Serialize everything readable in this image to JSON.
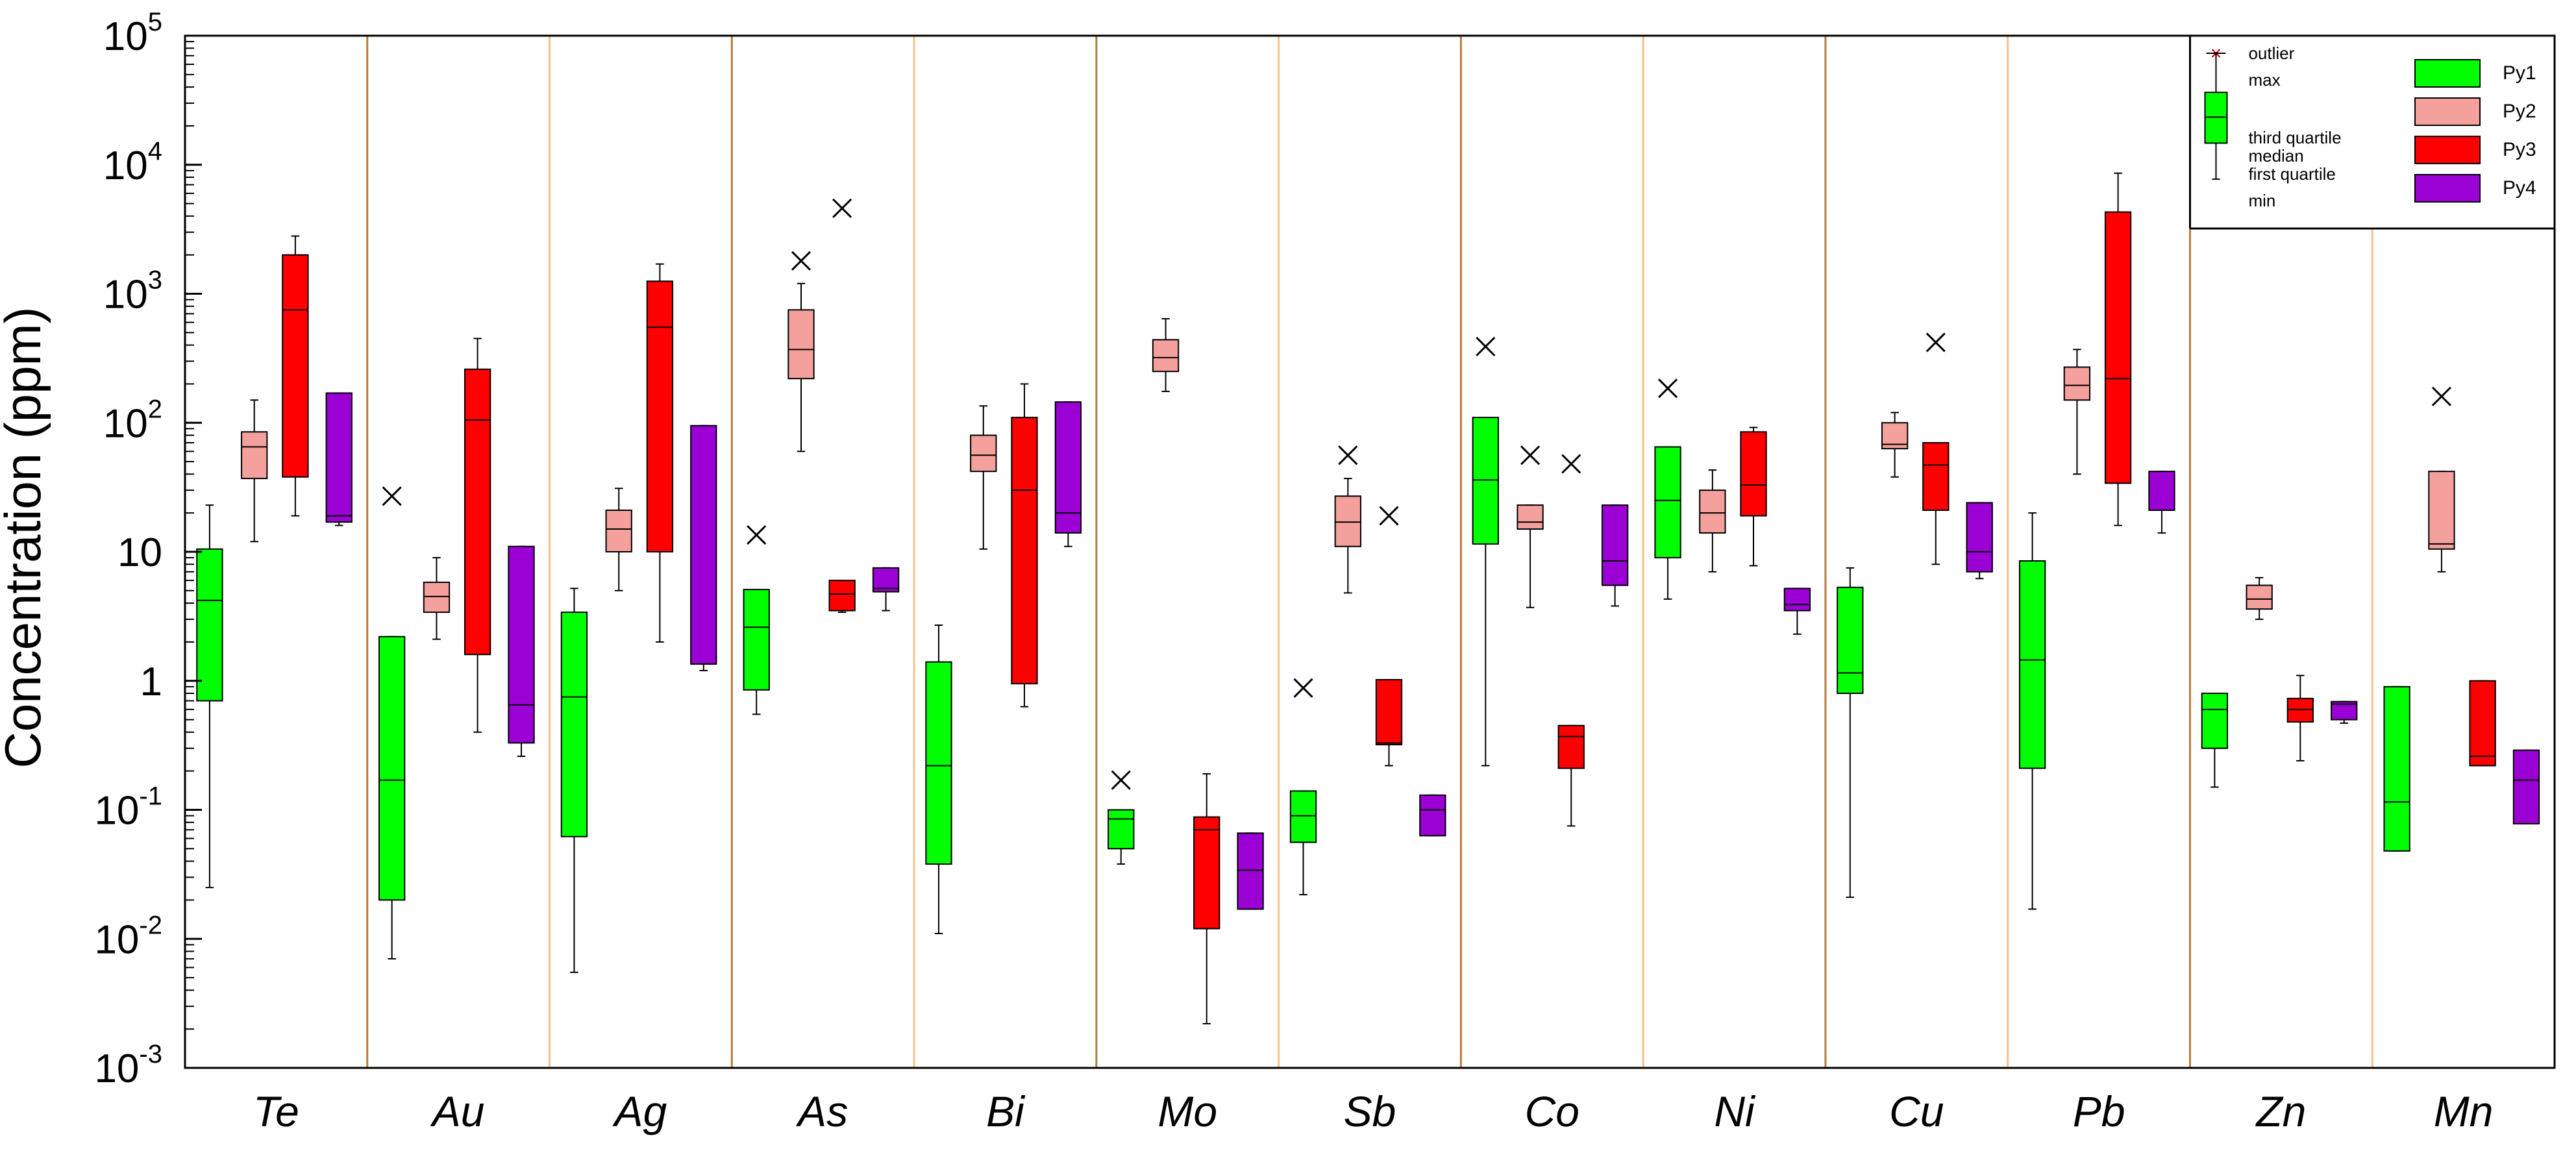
{
  "chart_data": {
    "type": "boxplot",
    "ylabel": "Concentration (ppm)",
    "yscale": "log",
    "ylim": [
      0.001,
      100000
    ],
    "y_tick_labels": [
      {
        "value": 0.001,
        "base": "10",
        "exp": "-3"
      },
      {
        "value": 0.01,
        "base": "10",
        "exp": "-2"
      },
      {
        "value": 0.1,
        "base": "10",
        "exp": "-1"
      },
      {
        "value": 1,
        "base": "1",
        "exp": ""
      },
      {
        "value": 10,
        "base": "10",
        "exp": ""
      },
      {
        "value": 100,
        "base": "10",
        "exp": "2"
      },
      {
        "value": 1000,
        "base": "10",
        "exp": "3"
      },
      {
        "value": 10000,
        "base": "10",
        "exp": "4"
      },
      {
        "value": 100000,
        "base": "10",
        "exp": "5"
      }
    ],
    "categories": [
      "Te",
      "Au",
      "Ag",
      "As",
      "Bi",
      "Mo",
      "Sb",
      "Co",
      "Ni",
      "Cu",
      "Pb",
      "Zn",
      "Mn"
    ],
    "series_colors": {
      "Py1": "#00ff00",
      "Py2": "#f4a09c",
      "Py3": "#ff0000",
      "Py4": "#9b00d4"
    },
    "separator_colors": {
      "dark": "#b87c3a",
      "light": "#f2c28c"
    },
    "legend": {
      "placement": "top-right",
      "box_labels": {
        "outlier": "outlier",
        "max": "max",
        "third_quartile": "third quartile",
        "median": "median",
        "first_quartile": "first quartile",
        "min": "min"
      },
      "series": [
        {
          "name": "Py1",
          "color": "#00ff00"
        },
        {
          "name": "Py2",
          "color": "#f4a09c"
        },
        {
          "name": "Py3",
          "color": "#ff0000"
        },
        {
          "name": "Py4",
          "color": "#9b00d4"
        }
      ]
    },
    "boxes": [
      {
        "element": "Te",
        "series": "Py1",
        "min": 0.025,
        "q1": 0.7,
        "median": 4.2,
        "q3": 10.5,
        "max": 23,
        "outliers": []
      },
      {
        "element": "Te",
        "series": "Py2",
        "min": 12,
        "q1": 37,
        "median": 65,
        "q3": 85,
        "max": 150,
        "outliers": []
      },
      {
        "element": "Te",
        "series": "Py3",
        "min": 19,
        "q1": 38,
        "median": 750,
        "q3": 2000,
        "max": 2800,
        "outliers": []
      },
      {
        "element": "Te",
        "series": "Py4",
        "min": 16,
        "q1": 17,
        "median": 19,
        "q3": 170,
        "max": 170,
        "outliers": []
      },
      {
        "element": "Au",
        "series": "Py1",
        "min": 0.007,
        "q1": 0.02,
        "median": 0.17,
        "q3": 2.2,
        "max": 2.2,
        "outliers": [
          27
        ]
      },
      {
        "element": "Au",
        "series": "Py2",
        "min": 2.1,
        "q1": 3.4,
        "median": 4.5,
        "q3": 5.8,
        "max": 9,
        "outliers": []
      },
      {
        "element": "Au",
        "series": "Py3",
        "min": 0.4,
        "q1": 1.6,
        "median": 105,
        "q3": 260,
        "max": 450,
        "outliers": []
      },
      {
        "element": "Au",
        "series": "Py4",
        "min": 0.26,
        "q1": 0.33,
        "median": 0.65,
        "q3": 11,
        "max": 11,
        "outliers": []
      },
      {
        "element": "Ag",
        "series": "Py1",
        "min": 0.0055,
        "q1": 0.062,
        "median": 0.75,
        "q3": 3.4,
        "max": 5.2,
        "outliers": []
      },
      {
        "element": "Ag",
        "series": "Py2",
        "min": 5,
        "q1": 10,
        "median": 15,
        "q3": 21,
        "max": 31,
        "outliers": []
      },
      {
        "element": "Ag",
        "series": "Py3",
        "min": 2,
        "q1": 10,
        "median": 550,
        "q3": 1250,
        "max": 1700,
        "outliers": []
      },
      {
        "element": "Ag",
        "series": "Py4",
        "min": 1.2,
        "q1": 1.35,
        "median": 1.35,
        "q3": 95,
        "max": 95,
        "outliers": []
      },
      {
        "element": "As",
        "series": "Py1",
        "min": 0.55,
        "q1": 0.85,
        "median": 2.6,
        "q3": 5.1,
        "max": 5.1,
        "outliers": [
          13.5
        ]
      },
      {
        "element": "As",
        "series": "Py2",
        "min": 60,
        "q1": 220,
        "median": 370,
        "q3": 750,
        "max": 1200,
        "outliers": [
          1800
        ]
      },
      {
        "element": "As",
        "series": "Py3",
        "min": 3.4,
        "q1": 3.5,
        "median": 4.7,
        "q3": 6,
        "max": 6,
        "outliers": [
          4600
        ]
      },
      {
        "element": "As",
        "series": "Py4",
        "min": 3.5,
        "q1": 4.9,
        "median": 5.2,
        "q3": 7.5,
        "max": 7.5,
        "outliers": []
      },
      {
        "element": "Bi",
        "series": "Py1",
        "min": 0.011,
        "q1": 0.038,
        "median": 0.22,
        "q3": 1.4,
        "max": 2.7,
        "outliers": []
      },
      {
        "element": "Bi",
        "series": "Py2",
        "min": 10.5,
        "q1": 42,
        "median": 56,
        "q3": 80,
        "max": 135,
        "outliers": []
      },
      {
        "element": "Bi",
        "series": "Py3",
        "min": 0.63,
        "q1": 0.95,
        "median": 30,
        "q3": 110,
        "max": 200,
        "outliers": []
      },
      {
        "element": "Bi",
        "series": "Py4",
        "min": 11,
        "q1": 14,
        "median": 20,
        "q3": 145,
        "max": 145,
        "outliers": []
      },
      {
        "element": "Mo",
        "series": "Py1",
        "min": 0.038,
        "q1": 0.05,
        "median": 0.085,
        "q3": 0.1,
        "max": 0.1,
        "outliers": [
          0.17
        ]
      },
      {
        "element": "Mo",
        "series": "Py2",
        "min": 175,
        "q1": 250,
        "median": 320,
        "q3": 440,
        "max": 640,
        "outliers": []
      },
      {
        "element": "Mo",
        "series": "Py3",
        "min": 0.0022,
        "q1": 0.012,
        "median": 0.07,
        "q3": 0.088,
        "max": 0.19,
        "outliers": []
      },
      {
        "element": "Mo",
        "series": "Py4",
        "min": 0.017,
        "q1": 0.017,
        "median": 0.034,
        "q3": 0.066,
        "max": 0.066,
        "outliers": []
      },
      {
        "element": "Sb",
        "series": "Py1",
        "min": 0.022,
        "q1": 0.056,
        "median": 0.09,
        "q3": 0.14,
        "max": 0.14,
        "outliers": [
          0.88
        ]
      },
      {
        "element": "Sb",
        "series": "Py2",
        "min": 4.8,
        "q1": 11,
        "median": 17,
        "q3": 27,
        "max": 37,
        "outliers": [
          56
        ]
      },
      {
        "element": "Sb",
        "series": "Py3",
        "min": 0.22,
        "q1": 0.32,
        "median": 0.33,
        "q3": 1.02,
        "max": 1.02,
        "outliers": [
          19
        ]
      },
      {
        "element": "Sb",
        "series": "Py4",
        "min": 0.063,
        "q1": 0.063,
        "median": 0.1,
        "q3": 0.13,
        "max": 0.13,
        "outliers": []
      },
      {
        "element": "Co",
        "series": "Py1",
        "min": 0.22,
        "q1": 11.5,
        "median": 36,
        "q3": 110,
        "max": 110,
        "outliers": [
          390
        ]
      },
      {
        "element": "Co",
        "series": "Py2",
        "min": 3.7,
        "q1": 15,
        "median": 17,
        "q3": 23,
        "max": 23,
        "outliers": [
          56
        ]
      },
      {
        "element": "Co",
        "series": "Py3",
        "min": 0.075,
        "q1": 0.21,
        "median": 0.37,
        "q3": 0.45,
        "max": 0.45,
        "outliers": [
          48
        ]
      },
      {
        "element": "Co",
        "series": "Py4",
        "min": 3.8,
        "q1": 5.5,
        "median": 8.5,
        "q3": 23,
        "max": 23,
        "outliers": []
      },
      {
        "element": "Ni",
        "series": "Py1",
        "min": 4.3,
        "q1": 9,
        "median": 25,
        "q3": 65,
        "max": 65,
        "outliers": [
          185
        ]
      },
      {
        "element": "Ni",
        "series": "Py2",
        "min": 7,
        "q1": 14,
        "median": 20,
        "q3": 30,
        "max": 43,
        "outliers": []
      },
      {
        "element": "Ni",
        "series": "Py3",
        "min": 7.8,
        "q1": 19,
        "median": 33,
        "q3": 85,
        "max": 92,
        "outliers": []
      },
      {
        "element": "Ni",
        "series": "Py4",
        "min": 2.3,
        "q1": 3.5,
        "median": 3.9,
        "q3": 5.2,
        "max": 5.2,
        "outliers": []
      },
      {
        "element": "Cu",
        "series": "Py1",
        "min": 0.021,
        "q1": 0.8,
        "median": 1.15,
        "q3": 5.3,
        "max": 7.5,
        "outliers": []
      },
      {
        "element": "Cu",
        "series": "Py2",
        "min": 38,
        "q1": 63,
        "median": 68,
        "q3": 100,
        "max": 120,
        "outliers": []
      },
      {
        "element": "Cu",
        "series": "Py3",
        "min": 8,
        "q1": 21,
        "median": 47,
        "q3": 70,
        "max": 70,
        "outliers": [
          420
        ]
      },
      {
        "element": "Cu",
        "series": "Py4",
        "min": 6.2,
        "q1": 7,
        "median": 10,
        "q3": 24,
        "max": 24,
        "outliers": []
      },
      {
        "element": "Pb",
        "series": "Py1",
        "min": 0.017,
        "q1": 0.21,
        "median": 1.45,
        "q3": 8.5,
        "max": 20,
        "outliers": []
      },
      {
        "element": "Pb",
        "series": "Py2",
        "min": 40,
        "q1": 150,
        "median": 195,
        "q3": 270,
        "max": 370,
        "outliers": []
      },
      {
        "element": "Pb",
        "series": "Py3",
        "min": 16,
        "q1": 34,
        "median": 220,
        "q3": 4300,
        "max": 8600,
        "outliers": []
      },
      {
        "element": "Pb",
        "series": "Py4",
        "min": 14,
        "q1": 21,
        "median": 21,
        "q3": 42,
        "max": 42,
        "outliers": []
      },
      {
        "element": "Zn",
        "series": "Py1",
        "min": 0.15,
        "q1": 0.3,
        "median": 0.6,
        "q3": 0.8,
        "max": 0.8,
        "outliers": []
      },
      {
        "element": "Zn",
        "series": "Py2",
        "min": 3,
        "q1": 3.6,
        "median": 4.3,
        "q3": 5.5,
        "max": 6.3,
        "outliers": []
      },
      {
        "element": "Zn",
        "series": "Py3",
        "min": 0.24,
        "q1": 0.48,
        "median": 0.6,
        "q3": 0.73,
        "max": 1.1,
        "outliers": []
      },
      {
        "element": "Zn",
        "series": "Py4",
        "min": 0.47,
        "q1": 0.5,
        "median": 0.66,
        "q3": 0.69,
        "max": 0.69,
        "outliers": []
      },
      {
        "element": "Mn",
        "series": "Py1",
        "min": 0.048,
        "q1": 0.048,
        "median": 0.115,
        "q3": 0.9,
        "max": 0.9,
        "outliers": []
      },
      {
        "element": "Mn",
        "series": "Py2",
        "min": 7,
        "q1": 10.5,
        "median": 11.5,
        "q3": 42,
        "max": 42,
        "outliers": [
          160
        ]
      },
      {
        "element": "Mn",
        "series": "Py3",
        "min": 0.22,
        "q1": 0.22,
        "median": 0.26,
        "q3": 1.0,
        "max": 1.0,
        "outliers": []
      },
      {
        "element": "Mn",
        "series": "Py4",
        "min": 0.078,
        "q1": 0.078,
        "median": 0.17,
        "q3": 0.29,
        "max": 0.29,
        "outliers": []
      }
    ],
    "legend_example_box": {
      "min": 4500,
      "q1": 8700,
      "median": 14000,
      "q3": 22000,
      "max": 45000
    }
  }
}
